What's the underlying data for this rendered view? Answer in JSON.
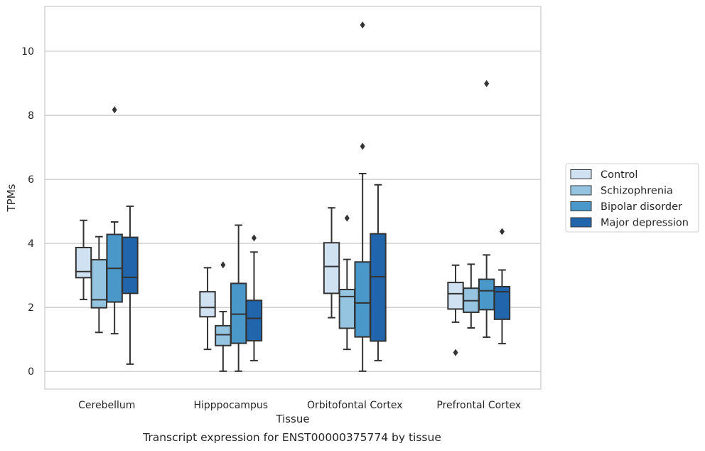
{
  "chart_data": {
    "type": "box",
    "xlabel": "Tissue",
    "ylabel": "TPMs",
    "caption": "Transcript expression for ENST00000375774 by tissue",
    "categories": [
      "Cerebellum",
      "Hipppocampus",
      "Orbitofontal Cortex",
      "Prefrontal Cortex"
    ],
    "yticks": [
      0,
      2,
      4,
      6,
      8,
      10
    ],
    "ylim": [
      -0.55,
      11.4
    ],
    "grid": "horizontal",
    "legend_position": "right",
    "series": [
      {
        "name": "Control",
        "color": "#d0e1f2",
        "boxes": [
          {
            "min": 2.25,
            "q1": 2.93,
            "median": 3.12,
            "q3": 3.87,
            "max": 4.72,
            "outliers": []
          },
          {
            "min": 0.69,
            "q1": 1.71,
            "median": 2.0,
            "q3": 2.49,
            "max": 3.24,
            "outliers": []
          },
          {
            "min": 1.68,
            "q1": 2.44,
            "median": 3.28,
            "q3": 4.02,
            "max": 5.11,
            "outliers": []
          },
          {
            "min": 1.54,
            "q1": 1.95,
            "median": 2.43,
            "q3": 2.78,
            "max": 3.32,
            "outliers": [
              0.59
            ]
          }
        ]
      },
      {
        "name": "Schizophrenia",
        "color": "#94c4df",
        "boxes": [
          {
            "min": 1.22,
            "q1": 1.99,
            "median": 2.24,
            "q3": 3.49,
            "max": 4.21,
            "outliers": []
          },
          {
            "min": 0.01,
            "q1": 0.81,
            "median": 1.15,
            "q3": 1.43,
            "max": 1.87,
            "outliers": [
              3.33
            ]
          },
          {
            "min": 0.69,
            "q1": 1.35,
            "median": 2.34,
            "q3": 2.56,
            "max": 3.5,
            "outliers": [
              4.79
            ]
          },
          {
            "min": 1.36,
            "q1": 1.85,
            "median": 2.21,
            "q3": 2.6,
            "max": 3.35,
            "outliers": []
          }
        ]
      },
      {
        "name": "Bipolar disorder",
        "color": "#4a98c9",
        "boxes": [
          {
            "min": 1.18,
            "q1": 2.17,
            "median": 3.22,
            "q3": 4.28,
            "max": 4.67,
            "outliers": [
              8.17
            ]
          },
          {
            "min": 0.01,
            "q1": 0.88,
            "median": 1.79,
            "q3": 2.75,
            "max": 4.57,
            "outliers": []
          },
          {
            "min": 0.01,
            "q1": 1.08,
            "median": 2.14,
            "q3": 3.42,
            "max": 6.18,
            "outliers": [
              7.03,
              10.82
            ]
          },
          {
            "min": 1.07,
            "q1": 1.93,
            "median": 2.52,
            "q3": 2.88,
            "max": 3.64,
            "outliers": [
              8.99
            ]
          }
        ]
      },
      {
        "name": "Major depression",
        "color": "#2166ac",
        "boxes": [
          {
            "min": 0.23,
            "q1": 2.44,
            "median": 2.94,
            "q3": 4.19,
            "max": 5.16,
            "outliers": []
          },
          {
            "min": 0.34,
            "q1": 0.96,
            "median": 1.66,
            "q3": 2.22,
            "max": 3.73,
            "outliers": [
              4.17
            ]
          },
          {
            "min": 0.34,
            "q1": 0.95,
            "median": 2.96,
            "q3": 4.3,
            "max": 5.83,
            "outliers": []
          },
          {
            "min": 0.87,
            "q1": 1.63,
            "median": 2.49,
            "q3": 2.65,
            "max": 3.17,
            "outliers": [
              4.37
            ]
          }
        ]
      }
    ]
  }
}
